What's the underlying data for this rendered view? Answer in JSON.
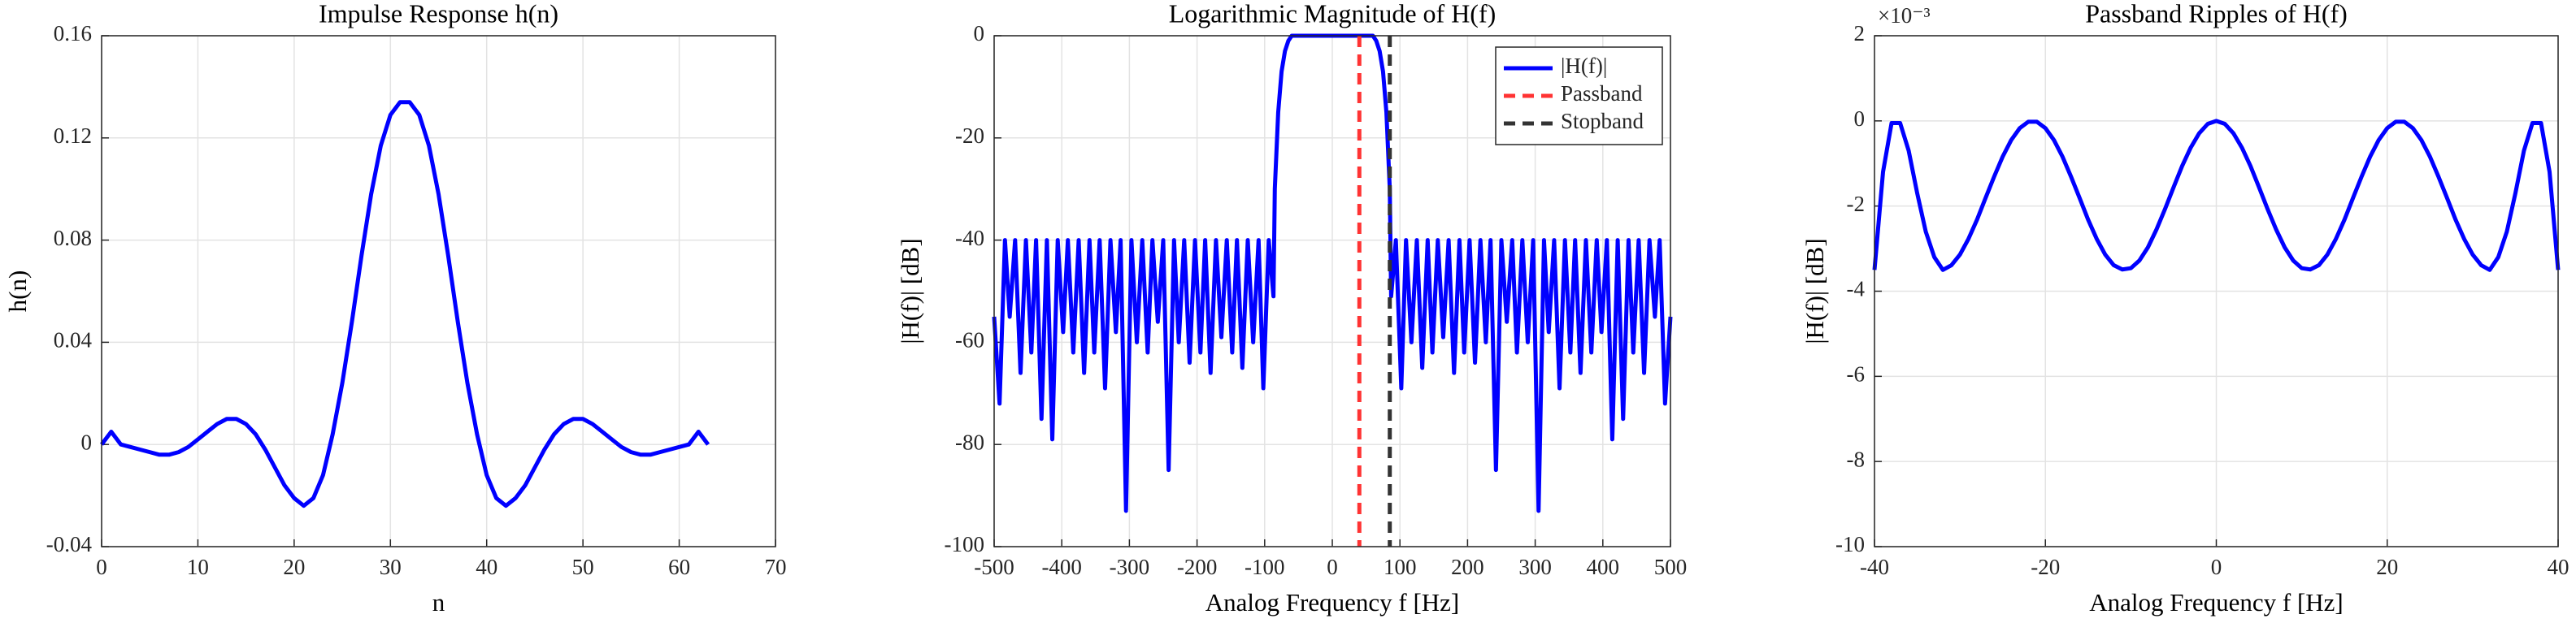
{
  "chart_data": [
    {
      "type": "line",
      "title": "Impulse Response h(n)",
      "xlabel": "n",
      "ylabel": "h(n)",
      "xlim": [
        0,
        70
      ],
      "xticks": [
        0,
        10,
        20,
        30,
        40,
        50,
        60,
        70
      ],
      "ylim": [
        -0.04,
        0.16
      ],
      "yticks": [
        -0.04,
        0,
        0.04,
        0.08,
        0.12,
        0.16
      ],
      "grid": true,
      "series": [
        {
          "color": "#0000ff",
          "x": [
            0,
            1,
            2,
            3,
            4,
            5,
            6,
            7,
            8,
            9,
            10,
            11,
            12,
            13,
            14,
            15,
            16,
            17,
            18,
            19,
            20,
            21,
            22,
            23,
            24,
            25,
            26,
            27,
            28,
            29,
            30,
            31,
            32,
            33,
            34,
            35,
            36,
            37,
            38,
            39,
            40,
            41,
            42,
            43,
            44,
            45,
            46,
            47,
            48,
            49,
            50,
            51,
            52,
            53,
            54,
            55,
            56,
            57,
            58,
            59,
            60,
            61,
            62,
            63
          ],
          "values": [
            0,
            0.005,
            0,
            -0.001,
            -0.002,
            -0.003,
            -0.004,
            -0.004,
            -0.003,
            -0.001,
            0.002,
            0.005,
            0.008,
            0.01,
            0.01,
            0.008,
            0.004,
            -0.002,
            -0.009,
            -0.016,
            -0.021,
            -0.024,
            -0.021,
            -0.012,
            0.004,
            0.024,
            0.048,
            0.074,
            0.098,
            0.117,
            0.129,
            0.134,
            0.134,
            0.129,
            0.117,
            0.098,
            0.074,
            0.048,
            0.024,
            0.004,
            -0.012,
            -0.021,
            -0.024,
            -0.021,
            -0.016,
            -0.009,
            -0.002,
            0.004,
            0.008,
            0.01,
            0.01,
            0.008,
            0.005,
            0.002,
            -0.001,
            -0.003,
            -0.004,
            -0.004,
            -0.003,
            -0.002,
            -0.001,
            0,
            0.005,
            0
          ]
        }
      ]
    },
    {
      "type": "line",
      "title": "Logarithmic Magnitude of H(f)",
      "xlabel": "Analog Frequency f [Hz]",
      "ylabel": "|H(f)| [dB]",
      "xlim": [
        -500,
        500
      ],
      "xticks": [
        -500,
        -400,
        -300,
        -200,
        -100,
        0,
        100,
        200,
        300,
        400,
        500
      ],
      "ylim": [
        -100,
        0
      ],
      "yticks": [
        -100,
        -80,
        -60,
        -40,
        -20,
        0
      ],
      "grid": true,
      "legend": "upper right",
      "series": [
        {
          "name": "|H(f)|",
          "color": "#0000ff",
          "x": [
            -500,
            -492,
            -484,
            -477,
            -469,
            -461,
            -453,
            -445,
            -438,
            -430,
            -422,
            -414,
            -406,
            -398,
            -391,
            -383,
            -375,
            -367,
            -359,
            -352,
            -344,
            -336,
            -328,
            -320,
            -313,
            -305,
            -297,
            -289,
            -281,
            -273,
            -266,
            -258,
            -250,
            -242,
            -234,
            -227,
            -219,
            -211,
            -203,
            -195,
            -188,
            -180,
            -172,
            -164,
            -156,
            -148,
            -141,
            -133,
            -125,
            -117,
            -109,
            -102,
            -94,
            -87,
            -85,
            -80,
            -75,
            -70,
            -65,
            -60,
            -50,
            0,
            50,
            60,
            65,
            70,
            75,
            80,
            85,
            87,
            94,
            102,
            109,
            117,
            125,
            133,
            141,
            148,
            156,
            164,
            172,
            180,
            188,
            195,
            203,
            211,
            219,
            227,
            234,
            242,
            250,
            258,
            266,
            273,
            281,
            289,
            297,
            305,
            313,
            320,
            328,
            336,
            344,
            352,
            359,
            367,
            375,
            383,
            391,
            398,
            406,
            414,
            422,
            430,
            438,
            445,
            453,
            461,
            469,
            477,
            484,
            492,
            500
          ],
          "values": [
            -55,
            -72,
            -40,
            -55,
            -40,
            -66,
            -40,
            -62,
            -40,
            -75,
            -40,
            -79,
            -40,
            -58,
            -40,
            -62,
            -40,
            -66,
            -40,
            -62,
            -40,
            -69,
            -40,
            -58,
            -40,
            -93,
            -40,
            -60,
            -40,
            -62,
            -40,
            -56,
            -40,
            -85,
            -40,
            -60,
            -40,
            -64,
            -40,
            -62,
            -40,
            -66,
            -40,
            -59,
            -40,
            -62,
            -40,
            -65,
            -40,
            -60,
            -40,
            -69,
            -40,
            -51,
            -30,
            -15,
            -7,
            -3,
            -1,
            0,
            0,
            0,
            0,
            0,
            -1,
            -3,
            -7,
            -15,
            -30,
            -51,
            -40,
            -69,
            -40,
            -60,
            -40,
            -65,
            -40,
            -62,
            -40,
            -59,
            -40,
            -66,
            -40,
            -62,
            -40,
            -64,
            -40,
            -60,
            -40,
            -85,
            -40,
            -56,
            -40,
            -62,
            -40,
            -60,
            -40,
            -93,
            -40,
            -58,
            -40,
            -69,
            -40,
            -62,
            -40,
            -66,
            -40,
            -62,
            -40,
            -58,
            -40,
            -79,
            -40,
            -75,
            -40,
            -62,
            -40,
            -66,
            -40,
            -55,
            -40,
            -72,
            -55
          ]
        }
      ],
      "vlines": [
        {
          "name": "Passband",
          "x": 40,
          "color": "#ff3333"
        },
        {
          "name": "Stopband",
          "x": 85,
          "color": "#333333"
        }
      ]
    },
    {
      "type": "line",
      "title": "Passband Ripples of H(f)",
      "xlabel": "Analog Frequency f [Hz]",
      "ylabel": "|H(f)| [dB]",
      "y_multiplier": "×10⁻³",
      "xlim": [
        -40,
        40
      ],
      "xticks": [
        -40,
        -20,
        0,
        20,
        40
      ],
      "ylim": [
        -10,
        2
      ],
      "yticks": [
        -10,
        -8,
        -6,
        -4,
        -2,
        0,
        2
      ],
      "grid": true,
      "series": [
        {
          "color": "#0000ff",
          "x": [
            -40,
            -39,
            -38,
            -37,
            -36,
            -35,
            -34,
            -33,
            -32,
            -31,
            -30,
            -29,
            -28,
            -27,
            -26,
            -25,
            -24,
            -23,
            -22,
            -21,
            -20,
            -19,
            -18,
            -17,
            -16,
            -15,
            -14,
            -13,
            -12,
            -11,
            -10,
            -9,
            -8,
            -7,
            -6,
            -5,
            -4,
            -3,
            -2,
            -1,
            0,
            1,
            2,
            3,
            4,
            5,
            6,
            7,
            8,
            9,
            10,
            11,
            12,
            13,
            14,
            15,
            16,
            17,
            18,
            19,
            20,
            21,
            22,
            23,
            24,
            25,
            26,
            27,
            28,
            29,
            30,
            31,
            32,
            33,
            34,
            35,
            36,
            37,
            38,
            39,
            40
          ],
          "values": [
            -3.5,
            -1.2,
            -0.05,
            -0.05,
            -0.7,
            -1.7,
            -2.6,
            -3.2,
            -3.5,
            -3.39,
            -3.14,
            -2.77,
            -2.32,
            -1.81,
            -1.31,
            -0.84,
            -0.45,
            -0.17,
            -0.02,
            -0.02,
            -0.17,
            -0.45,
            -0.84,
            -1.31,
            -1.81,
            -2.32,
            -2.77,
            -3.14,
            -3.39,
            -3.49,
            -3.46,
            -3.28,
            -2.97,
            -2.55,
            -2.07,
            -1.56,
            -1.06,
            -0.63,
            -0.29,
            -0.07,
            0,
            -0.07,
            -0.29,
            -0.63,
            -1.06,
            -1.56,
            -2.07,
            -2.55,
            -2.97,
            -3.28,
            -3.46,
            -3.49,
            -3.39,
            -3.14,
            -2.77,
            -2.32,
            -1.81,
            -1.31,
            -0.84,
            -0.45,
            -0.17,
            -0.02,
            -0.02,
            -0.17,
            -0.45,
            -0.84,
            -1.31,
            -1.81,
            -2.32,
            -2.77,
            -3.14,
            -3.39,
            -3.5,
            -3.2,
            -2.6,
            -1.7,
            -0.7,
            -0.05,
            -0.05,
            -1.2,
            -3.5
          ]
        }
      ]
    }
  ]
}
